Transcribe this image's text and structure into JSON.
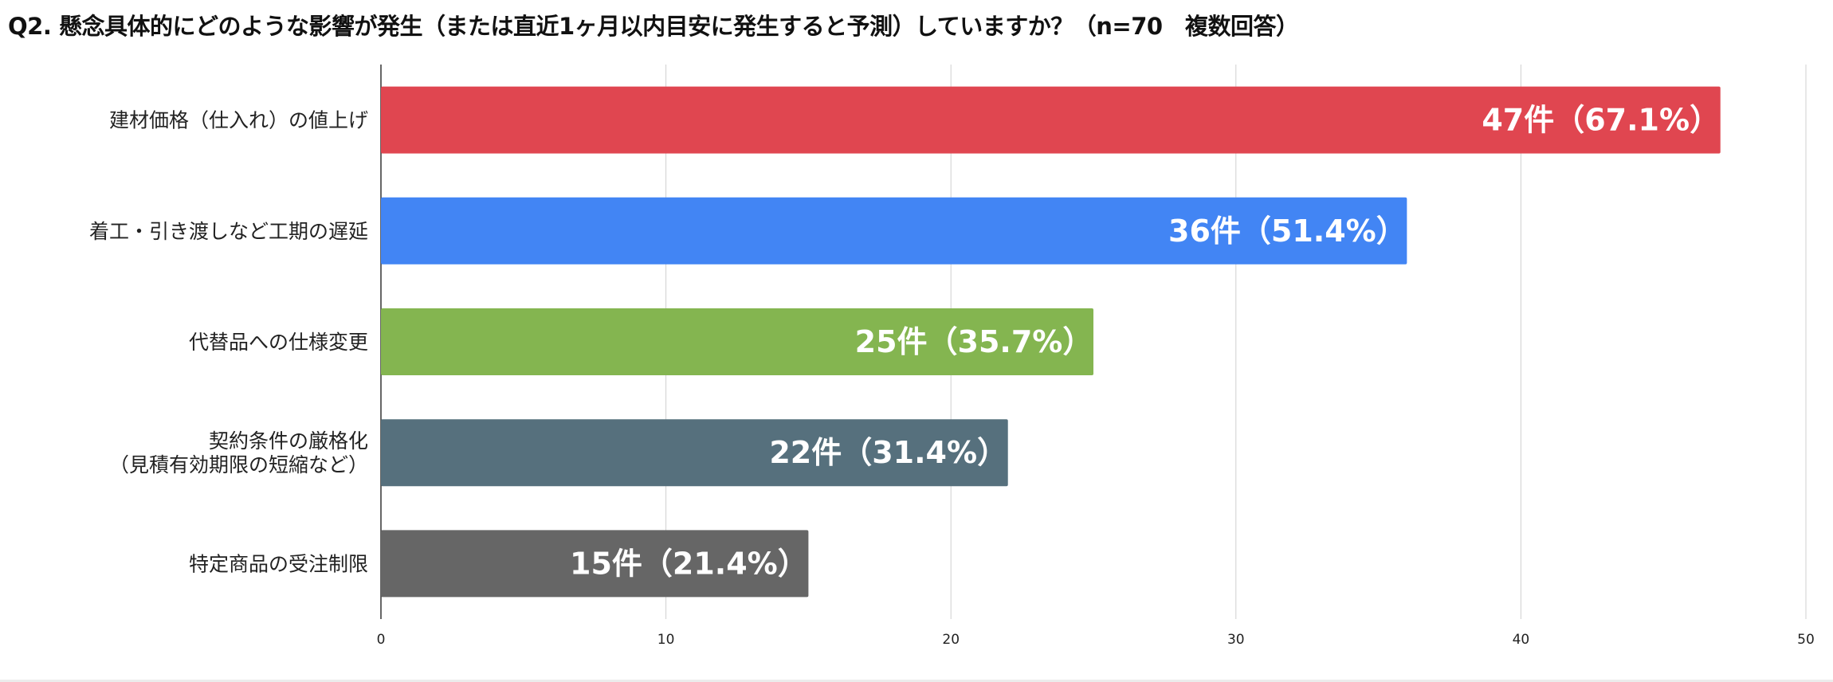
{
  "chart_data": {
    "type": "bar",
    "orientation": "horizontal",
    "title": "Q2. 懸念具体的にどのような影響が発生（または直近1ヶ月以内目安に発生すると予測）していますか？（n=70　複数回答）",
    "categories": [
      [
        "建材価格（仕入れ）の値上げ"
      ],
      [
        "着工・引き渡しなど工期の遅延"
      ],
      [
        "代替品への仕様変更"
      ],
      [
        "契約条件の厳格化",
        "（見積有効期限の短縮など）"
      ],
      [
        "特定商品の受注制限"
      ]
    ],
    "values": [
      47,
      36,
      25,
      22,
      15
    ],
    "data_labels": [
      "47件（67.1%）",
      "36件（51.4%）",
      "25件（35.7%）",
      "22件（31.4%）",
      "15件（21.4%）"
    ],
    "colors": [
      "#e04650",
      "#4285f4",
      "#84b550",
      "#56707d",
      "#666666"
    ],
    "xlim": [
      0,
      50
    ],
    "xticks": [
      "0",
      "10",
      "20",
      "30",
      "40",
      "50"
    ],
    "grid": true
  }
}
